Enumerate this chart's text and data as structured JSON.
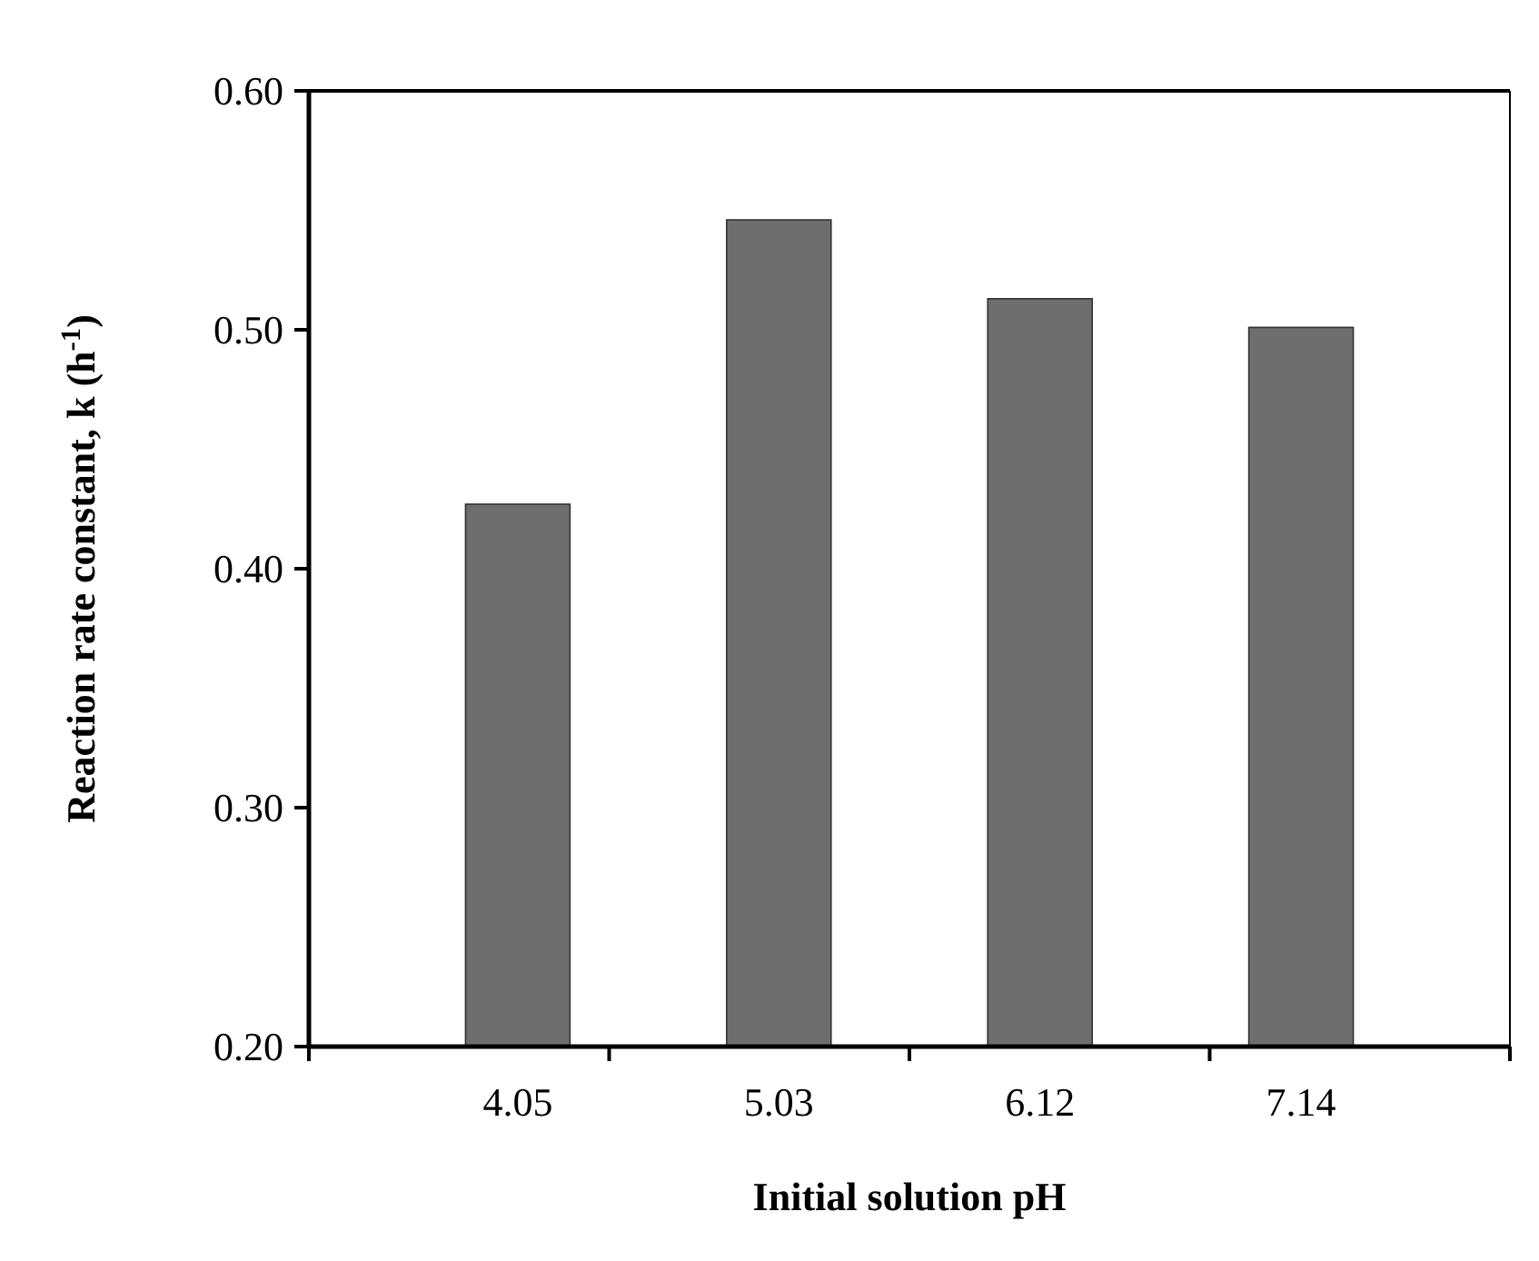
{
  "chart_data": {
    "type": "bar",
    "xlabel": "Initial solution pH",
    "ylabel": "Reaction rate constant, k (h$^{-1}$)",
    "categories": [
      "4.05",
      "5.03",
      "6.12",
      "7.14"
    ],
    "values": [
      0.427,
      0.546,
      0.513,
      0.501
    ],
    "color": "#6e6e6e",
    "ylim": [
      0.2,
      0.6
    ],
    "yticks": [
      {
        "value": 0.2,
        "label": "0.20"
      },
      {
        "value": 0.3,
        "label": "0.30"
      },
      {
        "value": 0.4,
        "label": "0.40"
      },
      {
        "value": 0.5,
        "label": "0.50"
      },
      {
        "value": 0.6,
        "label": "0.60"
      }
    ],
    "grid": false
  }
}
